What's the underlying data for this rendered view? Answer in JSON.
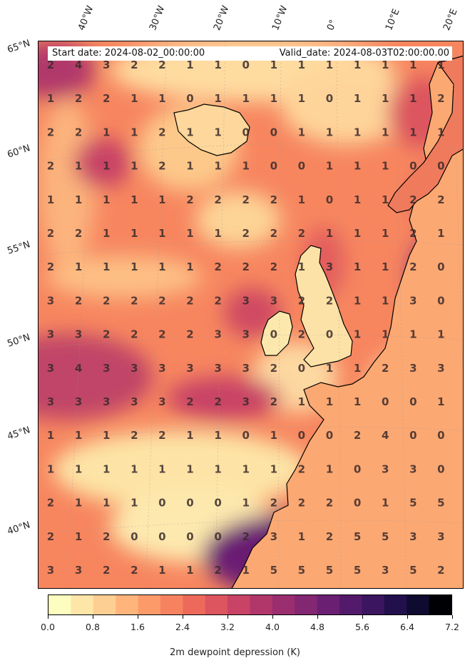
{
  "start_date": "Start date: 2024-08-02_00:00:00",
  "valid_date": "Valid_date: 2024-08-03T02:00:00.00",
  "colorbar": {
    "label": "2m dewpoint depression (K)",
    "ticks": [
      "0.0",
      "0.8",
      "1.6",
      "2.4",
      "3.2",
      "4.0",
      "4.8",
      "5.6",
      "6.4",
      "7.2"
    ],
    "min": 0.0,
    "max": 7.2,
    "colors": [
      "#fcfdbf",
      "#fee6a8",
      "#fecf92",
      "#feb47b",
      "#fd9a6a",
      "#f7825f",
      "#ed6a5a",
      "#dc555f",
      "#c84366",
      "#b1376b",
      "#9a2e6f",
      "#832772",
      "#6b1f73",
      "#531a6c",
      "#3b155f",
      "#22104c",
      "#0f0a30",
      "#000004"
    ]
  },
  "lon_labels": [
    "40°W",
    "30°W",
    "20°W",
    "10°W",
    "0°",
    "10°E",
    "20°E"
  ],
  "lat_labels": [
    "65°N",
    "60°N",
    "55°N",
    "50°N",
    "45°N",
    "40°N"
  ],
  "grid_values": [
    [
      2,
      4,
      3,
      2,
      2,
      1,
      1,
      0,
      1,
      1,
      1,
      1,
      1,
      1,
      1
    ],
    [
      1,
      2,
      2,
      1,
      1,
      0,
      1,
      1,
      1,
      1,
      0,
      1,
      1,
      1,
      2
    ],
    [
      2,
      2,
      1,
      1,
      2,
      1,
      1,
      0,
      0,
      1,
      1,
      1,
      1,
      1,
      1
    ],
    [
      2,
      1,
      1,
      1,
      2,
      1,
      1,
      1,
      0,
      0,
      1,
      1,
      1,
      0,
      0
    ],
    [
      1,
      1,
      1,
      1,
      1,
      2,
      2,
      2,
      2,
      1,
      0,
      1,
      1,
      2,
      2
    ],
    [
      2,
      2,
      1,
      1,
      1,
      1,
      1,
      2,
      2,
      2,
      1,
      1,
      1,
      2,
      1
    ],
    [
      2,
      1,
      1,
      1,
      1,
      1,
      2,
      2,
      2,
      1,
      3,
      1,
      1,
      2,
      0
    ],
    [
      3,
      2,
      2,
      2,
      2,
      2,
      2,
      3,
      3,
      2,
      2,
      1,
      1,
      3,
      0
    ],
    [
      3,
      3,
      2,
      2,
      2,
      2,
      3,
      3,
      0,
      2,
      0,
      1,
      1,
      1,
      1
    ],
    [
      3,
      4,
      3,
      3,
      3,
      3,
      3,
      3,
      2,
      0,
      1,
      1,
      2,
      3,
      3
    ],
    [
      3,
      3,
      3,
      3,
      3,
      2,
      2,
      3,
      2,
      1,
      1,
      1,
      0,
      0,
      1
    ],
    [
      1,
      1,
      1,
      2,
      2,
      1,
      1,
      0,
      1,
      0,
      0,
      2,
      4,
      0,
      0
    ],
    [
      1,
      1,
      1,
      1,
      1,
      1,
      1,
      1,
      1,
      2,
      1,
      0,
      3,
      3,
      0
    ],
    [
      2,
      1,
      1,
      1,
      0,
      0,
      0,
      1,
      2,
      2,
      2,
      0,
      1,
      5,
      5
    ],
    [
      2,
      1,
      2,
      0,
      0,
      0,
      0,
      2,
      3,
      1,
      2,
      5,
      5,
      3,
      3
    ],
    [
      3,
      3,
      2,
      2,
      1,
      1,
      2,
      1,
      5,
      5,
      5,
      5,
      3,
      5,
      2
    ]
  ]
}
